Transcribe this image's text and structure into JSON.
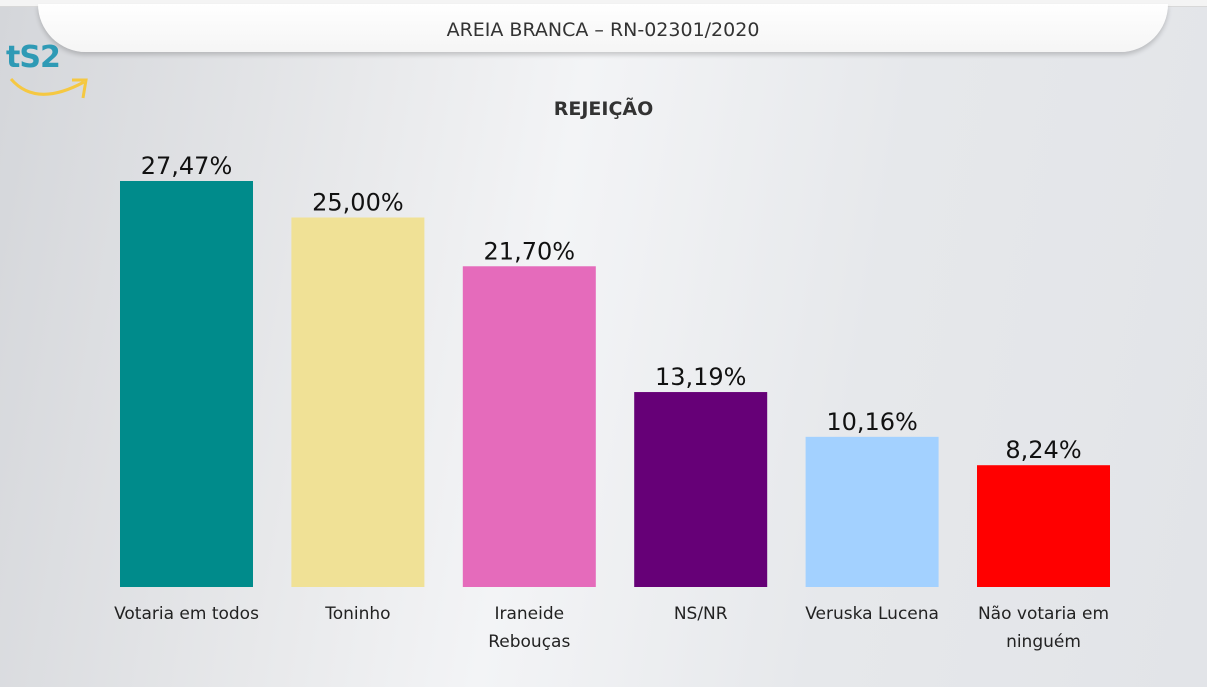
{
  "header": {
    "title": "AREIA BRANCA – RN-02301/2020"
  },
  "logo": {
    "text": "tS2",
    "colors": {
      "text": "#2e9ab5",
      "arrow": "#f5c842"
    }
  },
  "chart_data": {
    "type": "bar",
    "title": "REJEIÇÃO",
    "categories": [
      [
        "Votaria em todos"
      ],
      [
        "Toninho"
      ],
      [
        "Iraneide",
        "Rebouças"
      ],
      [
        "NS/NR"
      ],
      [
        "Veruska Lucena"
      ],
      [
        "Não votaria em",
        "ninguém"
      ]
    ],
    "values": [
      27.47,
      25.0,
      21.7,
      13.19,
      10.16,
      8.24
    ],
    "value_labels": [
      "27,47%",
      "25,00%",
      "21,70%",
      "13,19%",
      "10,16%",
      "8,24%"
    ],
    "colors": [
      "#008b8b",
      "#f0e196",
      "#e56bbb",
      "#660077",
      "#a3d1ff",
      "#ff0000"
    ],
    "xlabel": "",
    "ylabel": "",
    "ylim": [
      0,
      30
    ],
    "grid": false,
    "legend": "none"
  }
}
